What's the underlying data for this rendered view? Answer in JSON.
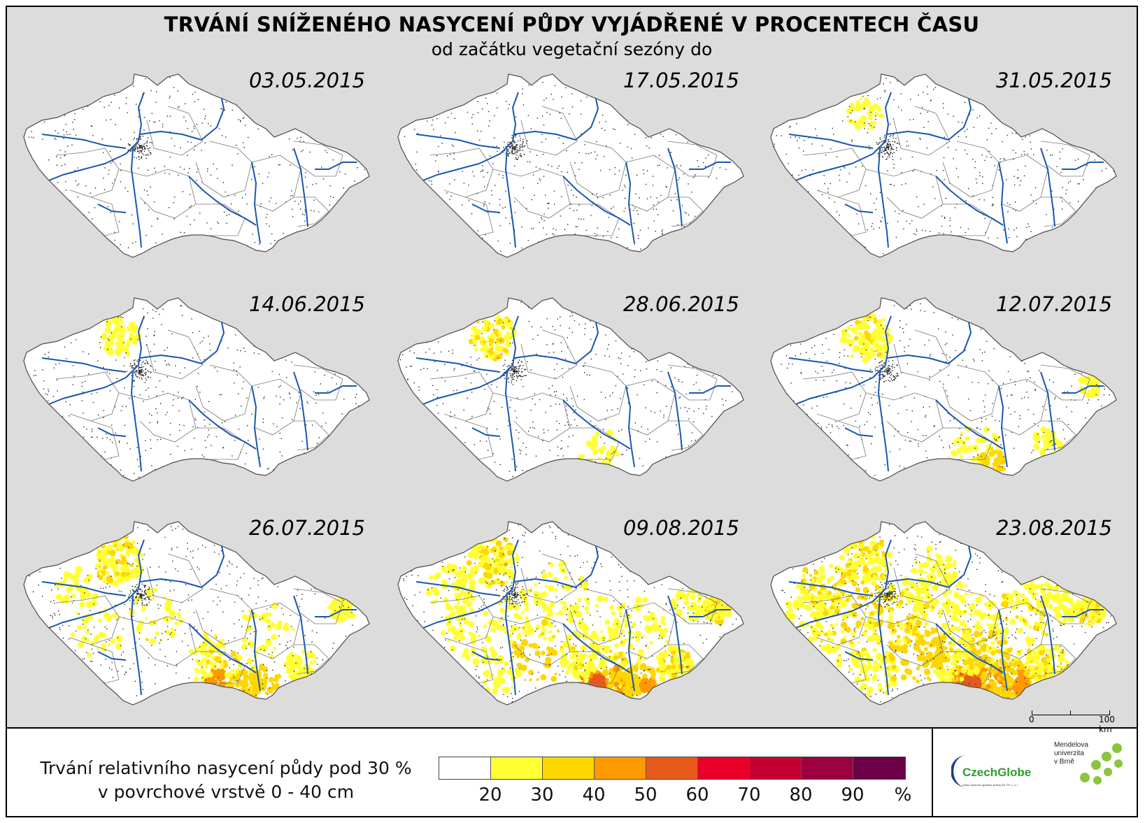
{
  "title": "TRVÁNÍ SNÍŽENÉHO NASYCENÍ PŮDY VYJÁDŘENÉ V PROCENTECH ČASU",
  "subtitle": "od začátku vegetační sezóny do",
  "panels": [
    {
      "date": "03.05.2015",
      "level": 0
    },
    {
      "date": "17.05.2015",
      "level": 0
    },
    {
      "date": "31.05.2015",
      "level": 1
    },
    {
      "date": "14.06.2015",
      "level": 2
    },
    {
      "date": "28.06.2015",
      "level": 3
    },
    {
      "date": "12.07.2015",
      "level": 4
    },
    {
      "date": "26.07.2015",
      "level": 5
    },
    {
      "date": "09.08.2015",
      "level": 6
    },
    {
      "date": "23.08.2015",
      "level": 7
    }
  ],
  "scalebar": {
    "label_start": "0",
    "label_end": "100 km"
  },
  "legend": {
    "line1": "Trvání relativního nasycení půdy pod 30 %",
    "line2": "v povrchové vrstvě 0 - 40 cm",
    "colors": [
      "#ffffff",
      "#ffff33",
      "#ffd700",
      "#ff9900",
      "#e85a19",
      "#e8002a",
      "#c40033",
      "#9c0040",
      "#6b0046"
    ],
    "ticks": [
      "20",
      "30",
      "40",
      "50",
      "60",
      "70",
      "80",
      "90",
      "%"
    ]
  },
  "logos": {
    "czechglobe": "CzechGlobe",
    "czechglobe_sub": "Ústav výzkumu globální změny AV ČR, v. v. i.",
    "mendel_line1": "Mendelova",
    "mendel_line2": "univerzita",
    "mendel_line3": "v Brně"
  },
  "colors": {
    "background": "#dcdcdc",
    "river": "#1a56b0",
    "border": "#666666"
  }
}
